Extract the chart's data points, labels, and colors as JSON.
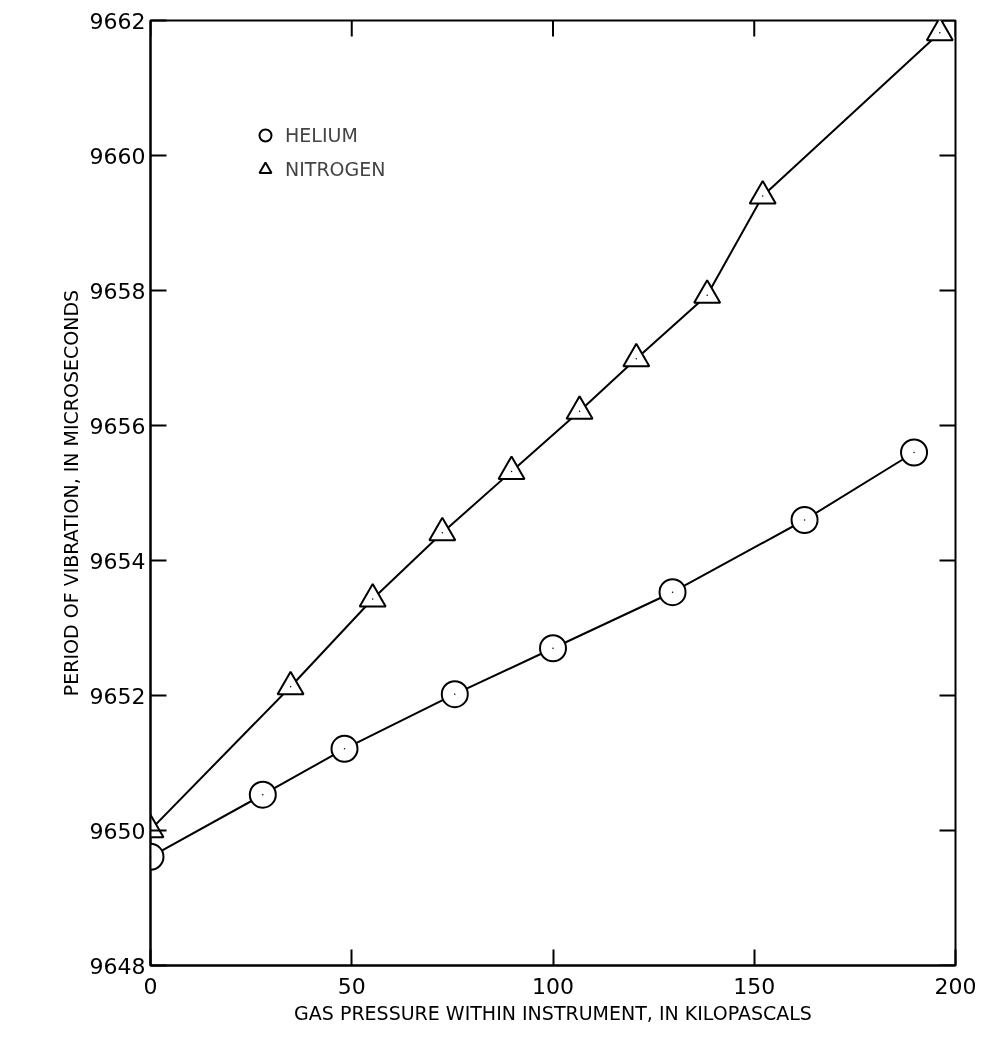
{
  "chart_data": {
    "type": "line",
    "xlabel": "GAS PRESSURE WITHIN INSTRUMENT, IN KILOPASCALS",
    "ylabel": "PERIOD OF VIBRATION, IN MICROSECONDS",
    "xlim": [
      0,
      200
    ],
    "xticks": [
      0,
      50,
      100,
      150,
      200
    ],
    "ylim": [
      9648,
      9662
    ],
    "yticks": [
      9648,
      9650,
      9652,
      9654,
      9656,
      9658,
      9660,
      9662
    ],
    "grid": false,
    "legend": "top left",
    "series": [
      {
        "name": "HELIUM",
        "color": "#000000",
        "marker": "circle",
        "x": [
          0,
          27.9,
          48.2,
          75.6,
          100.0,
          129.7,
          162.5,
          189.7
        ],
        "values": [
          9649.61,
          9650.53,
          9651.21,
          9652.02,
          9652.7,
          9653.53,
          9654.6,
          9655.6
        ]
      },
      {
        "name": "NITROGEN",
        "color": "#000000",
        "marker": "triangle",
        "x": [
          0,
          34.8,
          55.2,
          72.5,
          89.7,
          106.6,
          120.7,
          138.3,
          152.1,
          196.1
        ],
        "values": [
          9650.01,
          9652.13,
          9653.43,
          9654.41,
          9655.32,
          9656.21,
          9656.99,
          9657.93,
          9659.4,
          9661.82
        ]
      }
    ]
  }
}
